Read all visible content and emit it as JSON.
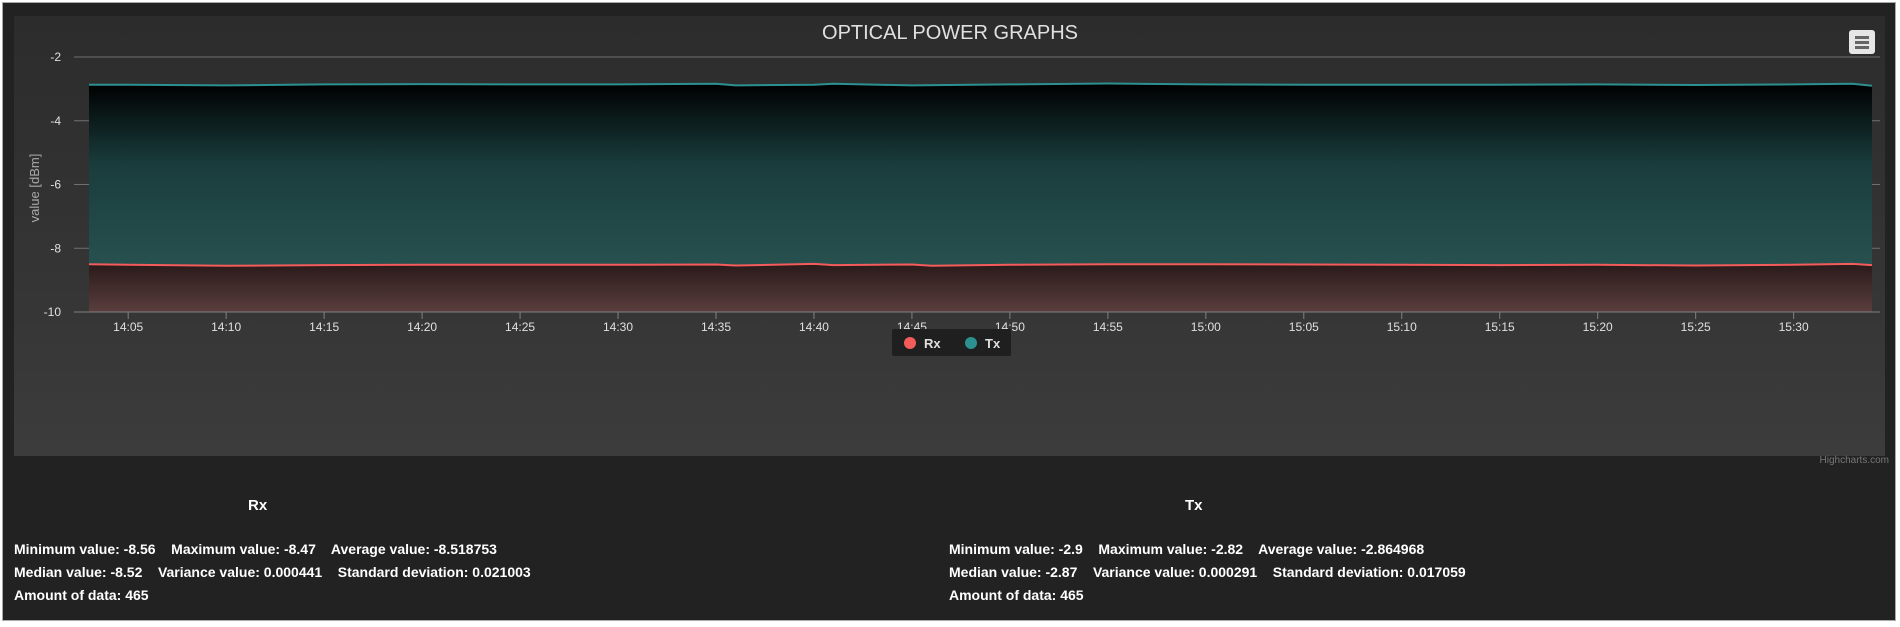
{
  "chart_data": {
    "type": "area",
    "title": "OPTICAL POWER GRAPHS",
    "ylabel": "value [dBm]",
    "ylim": [
      -10,
      -2
    ],
    "y_ticks": [
      "-2",
      "-4",
      "-6",
      "-8",
      "-10"
    ],
    "x_ticks": [
      "14:05",
      "14:10",
      "14:15",
      "14:20",
      "14:25",
      "14:30",
      "14:35",
      "14:40",
      "14:45",
      "14:50",
      "14:55",
      "15:00",
      "15:05",
      "15:10",
      "15:15",
      "15:20",
      "15:25",
      "15:30"
    ],
    "x_range": [
      "14:03",
      "15:34"
    ],
    "grid": true,
    "legend_position": "bottom-center",
    "series": [
      {
        "name": "Tx",
        "color": "#2b908f",
        "x": [
          "14:03",
          "14:05",
          "14:10",
          "14:15",
          "14:20",
          "14:25",
          "14:30",
          "14:35",
          "14:36",
          "14:40",
          "14:41",
          "14:45",
          "14:50",
          "14:55",
          "15:00",
          "15:05",
          "15:10",
          "15:15",
          "15:20",
          "15:25",
          "15:30",
          "15:33",
          "15:34"
        ],
        "values": [
          -2.87,
          -2.87,
          -2.89,
          -2.86,
          -2.85,
          -2.86,
          -2.86,
          -2.84,
          -2.89,
          -2.87,
          -2.84,
          -2.89,
          -2.86,
          -2.83,
          -2.86,
          -2.87,
          -2.87,
          -2.87,
          -2.86,
          -2.88,
          -2.86,
          -2.84,
          -2.9
        ]
      },
      {
        "name": "Rx",
        "color": "#f45b5b",
        "x": [
          "14:03",
          "14:05",
          "14:10",
          "14:15",
          "14:20",
          "14:25",
          "14:30",
          "14:35",
          "14:36",
          "14:40",
          "14:41",
          "14:45",
          "14:46",
          "14:50",
          "14:55",
          "15:00",
          "15:05",
          "15:10",
          "15:15",
          "15:20",
          "15:25",
          "15:30",
          "15:33",
          "15:34"
        ],
        "values": [
          -8.5,
          -8.52,
          -8.55,
          -8.53,
          -8.52,
          -8.52,
          -8.52,
          -8.51,
          -8.54,
          -8.49,
          -8.53,
          -8.51,
          -8.55,
          -8.52,
          -8.5,
          -8.5,
          -8.51,
          -8.52,
          -8.53,
          -8.52,
          -8.54,
          -8.52,
          -8.49,
          -8.53
        ]
      }
    ]
  },
  "menu": {
    "icon": "hamburger-menu-icon"
  },
  "credit": "Highcharts.com",
  "legend": {
    "rx_label": "Rx",
    "tx_label": "Tx"
  },
  "stats": {
    "rx": {
      "title": "Rx",
      "line1": "Minimum value: -8.56    Maximum value: -8.47    Average value: -8.518753",
      "line2": "Median value: -8.52    Variance value: 0.000441    Standard deviation: 0.021003",
      "line3": "Amount of data: 465"
    },
    "tx": {
      "title": "Tx",
      "line1": "Minimum value: -2.9    Maximum value: -2.82    Average value: -2.864968",
      "line2": "Median value: -2.87    Variance value: 0.000291    Standard deviation: 0.017059",
      "line3": "Amount of data: 465"
    }
  }
}
